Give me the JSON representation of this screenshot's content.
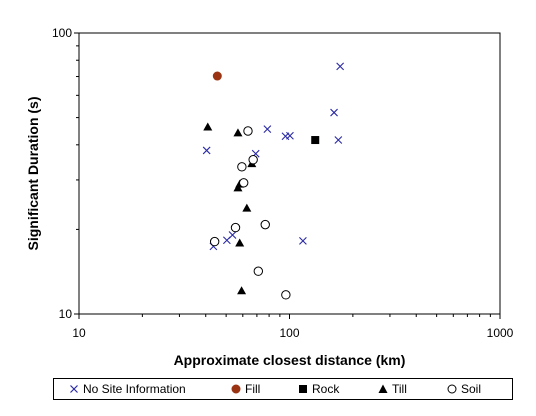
{
  "chart_data": {
    "type": "scatter",
    "xlabel": "Approximate closest distance (km)",
    "ylabel": "Significant Duration (s)",
    "x_scale": "log",
    "y_scale": "log",
    "xlim": [
      10,
      1000
    ],
    "ylim": [
      10,
      100
    ],
    "x_ticks": [
      "10",
      "100",
      "1000"
    ],
    "y_ticks": [
      "10",
      "100"
    ],
    "grid": false,
    "legend_position": "bottom",
    "series": [
      {
        "name": "No Site Information",
        "marker": "x-icon",
        "color": "#2a2aa6",
        "points": [
          {
            "x": 40.4,
            "y": 38.2
          },
          {
            "x": 43.5,
            "y": 17.4
          },
          {
            "x": 50.4,
            "y": 18.3
          },
          {
            "x": 53.6,
            "y": 19.1
          },
          {
            "x": 69.1,
            "y": 37.2
          },
          {
            "x": 78.5,
            "y": 45.5
          },
          {
            "x": 95.7,
            "y": 42.9
          },
          {
            "x": 100.5,
            "y": 43.1
          },
          {
            "x": 115.8,
            "y": 18.2
          },
          {
            "x": 162.8,
            "y": 52.1
          },
          {
            "x": 170.6,
            "y": 41.6
          },
          {
            "x": 174.0,
            "y": 76.1
          }
        ]
      },
      {
        "name": "Fill",
        "marker": "circle-filled-icon",
        "color": "#9a3412",
        "points": [
          {
            "x": 45.4,
            "y": 70.3
          }
        ]
      },
      {
        "name": "Rock",
        "marker": "square-filled-icon",
        "color": "#000000",
        "points": [
          {
            "x": 132.5,
            "y": 41.6
          }
        ]
      },
      {
        "name": "Till",
        "marker": "triangle-filled-icon",
        "color": "#000000",
        "points": [
          {
            "x": 40.9,
            "y": 46.3
          },
          {
            "x": 56.9,
            "y": 44.1
          },
          {
            "x": 56.9,
            "y": 28.1
          },
          {
            "x": 58.0,
            "y": 29.0
          },
          {
            "x": 58.0,
            "y": 17.9
          },
          {
            "x": 59.2,
            "y": 12.1
          },
          {
            "x": 62.7,
            "y": 23.8
          },
          {
            "x": 66.2,
            "y": 34.3
          }
        ]
      },
      {
        "name": "Soil",
        "marker": "circle-open-icon",
        "color": "#000000",
        "points": [
          {
            "x": 44.1,
            "y": 18.1
          },
          {
            "x": 55.4,
            "y": 20.3
          },
          {
            "x": 59.4,
            "y": 33.4
          },
          {
            "x": 60.6,
            "y": 29.3
          },
          {
            "x": 63.5,
            "y": 44.8
          },
          {
            "x": 67.2,
            "y": 35.4
          },
          {
            "x": 71.1,
            "y": 14.2
          },
          {
            "x": 76.7,
            "y": 20.8
          },
          {
            "x": 96.1,
            "y": 11.7
          }
        ]
      }
    ]
  }
}
